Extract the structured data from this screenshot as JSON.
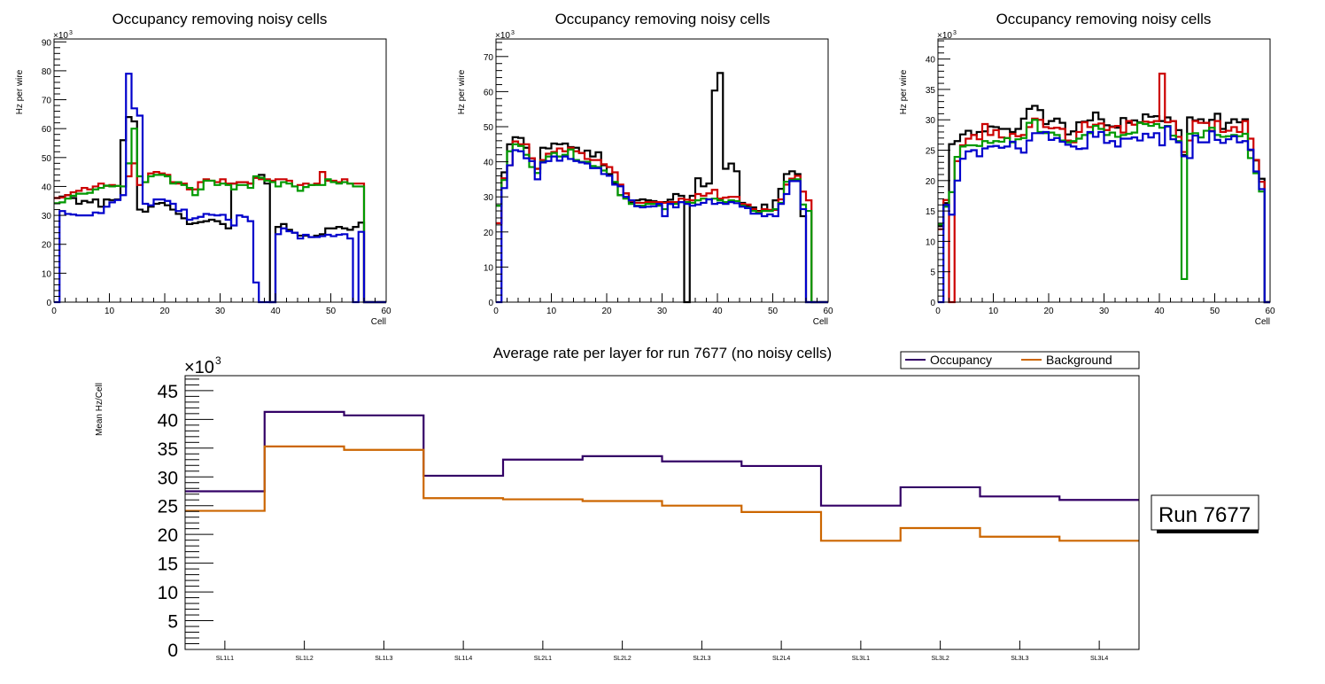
{
  "chart_data": [
    {
      "id": "occ1",
      "type": "histogram-step",
      "title": "Occupancy removing noisy cells",
      "xlabel": "Cell",
      "ylabel": "Hz per wire",
      "y_multiplier_label": "×10",
      "y_multiplier_exp": "3",
      "xlim": [
        0,
        60
      ],
      "ylim": [
        0,
        91
      ],
      "xticks": [
        0,
        10,
        20,
        30,
        40,
        50,
        60
      ],
      "yticks": [
        0,
        10,
        20,
        30,
        40,
        50,
        60,
        70,
        80,
        90
      ],
      "bin_width": 1,
      "series": [
        {
          "name": "layer-black",
          "color": "#000000",
          "values": [
            36,
            36.5,
            37,
            36,
            34,
            35,
            34.5,
            35.5,
            33,
            35.5,
            35.3,
            35.5,
            56,
            64,
            62.5,
            32,
            31.3,
            33,
            34,
            34.3,
            33.5,
            32,
            30.5,
            29,
            27,
            27.3,
            27.7,
            28,
            28.5,
            28,
            27,
            25.5,
            41,
            41.5,
            41.5,
            41,
            43,
            44,
            41,
            0,
            26,
            27,
            25,
            24,
            23,
            23,
            22.5,
            23,
            23.5,
            25.5,
            25.5,
            26,
            25.5,
            25,
            26,
            27.5,
            0,
            0,
            0,
            0
          ]
        },
        {
          "name": "layer-red",
          "color": "#cc0000",
          "values": [
            36,
            36.2,
            37,
            38,
            38.5,
            39.5,
            39,
            40,
            41,
            40.2,
            40.5,
            40.2,
            40,
            43.5,
            48,
            40.5,
            41.5,
            44.5,
            45,
            44.5,
            44,
            41.5,
            41,
            41,
            39,
            39,
            41.5,
            42.5,
            42,
            41.5,
            42.5,
            41,
            41,
            41.5,
            41.5,
            41,
            43,
            42.5,
            42.5,
            42,
            42.5,
            42.5,
            42,
            40,
            40.5,
            41,
            40.5,
            41,
            45,
            42,
            42,
            41.5,
            42.5,
            41,
            41,
            41,
            0,
            0,
            0,
            0
          ]
        },
        {
          "name": "layer-green",
          "color": "#009900",
          "values": [
            34.2,
            34.5,
            35.8,
            36.8,
            37.5,
            37.5,
            37.8,
            39,
            39.5,
            40.3,
            40,
            40.2,
            40,
            48,
            60,
            43.5,
            41.5,
            43.5,
            44,
            44,
            43.5,
            41,
            41.5,
            40.5,
            39.5,
            37,
            39,
            42,
            42,
            40.5,
            41,
            40.5,
            39,
            40.5,
            40.5,
            39.5,
            43.5,
            43,
            42,
            41.5,
            40,
            41.5,
            41,
            40,
            38.5,
            39.8,
            40.5,
            40.5,
            40.5,
            42.5,
            41.5,
            41,
            41.5,
            41,
            40,
            40,
            0,
            0,
            0,
            0
          ]
        },
        {
          "name": "layer-blue",
          "color": "#0000cc",
          "values": [
            0,
            31.5,
            30.5,
            30.3,
            30,
            30,
            30,
            31,
            30.8,
            33,
            34.5,
            35.3,
            37,
            79,
            67,
            64.5,
            34,
            33.5,
            35.5,
            35.5,
            35,
            34,
            31.5,
            32,
            28.5,
            29,
            29.5,
            30.5,
            30.2,
            30,
            30.2,
            28.5,
            26.5,
            30,
            29.5,
            28,
            6.8,
            0,
            0,
            0,
            23.5,
            25.5,
            24.5,
            24,
            22,
            23.3,
            22.5,
            22.5,
            22.8,
            23.3,
            22.8,
            23.3,
            23.5,
            22,
            0,
            24.3,
            0,
            0,
            0,
            0
          ]
        }
      ]
    },
    {
      "id": "occ2",
      "type": "histogram-step",
      "title": "Occupancy removing noisy cells",
      "xlabel": "Cell",
      "ylabel": "Hz per wire",
      "y_multiplier_label": "×10",
      "y_multiplier_exp": "3",
      "xlim": [
        0,
        60
      ],
      "ylim": [
        0,
        75
      ],
      "xticks": [
        0,
        10,
        20,
        30,
        40,
        50,
        60
      ],
      "yticks": [
        0,
        10,
        20,
        30,
        40,
        50,
        60,
        70
      ],
      "bin_width": 1,
      "series": [
        {
          "name": "layer-black",
          "color": "#000000",
          "values": [
            27.5,
            37,
            45,
            47,
            46.8,
            44,
            41,
            38,
            44,
            43.8,
            45.2,
            45,
            45.2,
            44.2,
            44,
            42.5,
            43.2,
            41.5,
            42.7,
            39,
            36.5,
            34,
            30.5,
            31,
            28.5,
            29,
            29.3,
            29,
            28.8,
            28.5,
            28.5,
            29.2,
            30.8,
            30.3,
            0,
            30.3,
            35.3,
            33,
            33.8,
            60.3,
            65.3,
            38,
            39.5,
            37.3,
            28.3,
            27.3,
            27,
            26,
            27.8,
            26,
            29,
            32.3,
            36.5,
            37.3,
            36.5,
            24.5,
            0,
            0,
            0,
            0
          ]
        },
        {
          "name": "layer-red",
          "color": "#cc0000",
          "values": [
            22.5,
            35.3,
            39,
            45.8,
            45,
            45,
            41,
            38,
            40.5,
            42.3,
            42.8,
            43.8,
            43,
            44,
            43,
            42.5,
            40.8,
            40.5,
            40.5,
            39.3,
            38.5,
            37,
            33.5,
            31,
            28.8,
            28.3,
            28.3,
            28.5,
            28.5,
            28.5,
            28.3,
            28.5,
            28.5,
            29.5,
            29.2,
            29,
            30.8,
            30.3,
            31,
            32,
            29.5,
            29.8,
            30,
            30,
            28,
            27.8,
            26.5,
            25.8,
            26.5,
            26.3,
            26.3,
            29.3,
            33.5,
            35.2,
            36,
            31.5,
            29,
            0,
            0,
            0
          ]
        },
        {
          "name": "layer-green",
          "color": "#009900",
          "values": [
            27.5,
            34.8,
            43,
            45,
            44.5,
            42,
            38.5,
            36.8,
            40,
            41.5,
            42.5,
            41.5,
            42,
            43.5,
            40.5,
            40,
            40,
            38.8,
            38.5,
            37.5,
            36,
            34.3,
            30.5,
            29.5,
            28,
            27.5,
            27.5,
            28,
            28,
            27.5,
            26.5,
            28,
            28,
            28.5,
            28.5,
            28.3,
            29,
            29.5,
            29.3,
            29.5,
            29,
            28.5,
            29,
            28.8,
            27.5,
            27,
            26,
            25.5,
            26,
            26,
            26.5,
            28.3,
            34.3,
            34.8,
            35,
            27.8,
            26,
            0,
            0,
            0
          ]
        },
        {
          "name": "layer-blue",
          "color": "#0000cc",
          "values": [
            0,
            32.5,
            39,
            43.3,
            43,
            41,
            40.2,
            35,
            39.8,
            40.2,
            41.5,
            40.3,
            41.5,
            40.8,
            40.2,
            39.8,
            39.5,
            38.2,
            38.2,
            36.5,
            36,
            33.5,
            33,
            30,
            29,
            27.3,
            27,
            27.2,
            27.3,
            28,
            24.5,
            28,
            27,
            28.5,
            28,
            27.5,
            27.8,
            28.3,
            29.3,
            28,
            28.3,
            28,
            28.5,
            28.2,
            27.2,
            26.8,
            25.2,
            25.2,
            24.5,
            25,
            24.5,
            28,
            30.8,
            34.5,
            34.5,
            26.5,
            0,
            0,
            0,
            0
          ]
        }
      ]
    },
    {
      "id": "occ3",
      "type": "histogram-step",
      "title": "Occupancy removing noisy cells",
      "xlabel": "Cell",
      "ylabel": "Hz per wire",
      "y_multiplier_label": "×10",
      "y_multiplier_exp": "3",
      "xlim": [
        0,
        60
      ],
      "ylim": [
        0,
        43.3
      ],
      "xticks": [
        0,
        10,
        20,
        30,
        40,
        50,
        60
      ],
      "yticks": [
        0,
        5,
        10,
        15,
        20,
        25,
        30,
        35,
        40
      ],
      "bin_width": 1,
      "series": [
        {
          "name": "layer-black",
          "color": "#000000",
          "values": [
            12.5,
            16.3,
            26,
            26.5,
            27.6,
            28.2,
            27.5,
            28,
            28.1,
            28.9,
            28.8,
            28.5,
            28.5,
            28,
            28.5,
            30.2,
            31.8,
            32.3,
            31.6,
            29.3,
            29.8,
            30.2,
            29.5,
            27.6,
            28.1,
            29.6,
            29.7,
            29.9,
            31.2,
            30.1,
            29.1,
            28.9,
            28.7,
            30.3,
            29.5,
            29.9,
            29.6,
            30.9,
            30.5,
            30.6,
            29.8,
            30.4,
            29.8,
            28.3,
            24.2,
            30.4,
            29.9,
            30.1,
            29.5,
            30,
            31,
            28.5,
            29.5,
            30.1,
            29.6,
            30.1,
            25,
            23.3,
            20.3,
            0
          ]
        },
        {
          "name": "layer-red",
          "color": "#cc0000",
          "values": [
            12,
            16.8,
            0,
            23.2,
            25.8,
            26.9,
            27.5,
            26.8,
            29.3,
            27.5,
            28.3,
            27.1,
            27,
            27.7,
            27.3,
            27.5,
            28.8,
            30.2,
            30,
            28.8,
            28.6,
            28.7,
            28.5,
            26.6,
            26.3,
            28,
            29.6,
            28.8,
            29.2,
            29.4,
            28.3,
            28.8,
            29,
            27.9,
            29.8,
            29.2,
            29.5,
            29.7,
            29.6,
            29.8,
            37.6,
            29.6,
            29.8,
            27.2,
            24.7,
            26.6,
            29.8,
            29.5,
            29.5,
            28.2,
            29.8,
            28,
            28.2,
            28.8,
            28,
            29.8,
            26.9,
            23.4,
            19.8,
            0
          ]
        },
        {
          "name": "layer-green",
          "color": "#009900",
          "values": [
            12.8,
            15.7,
            18.1,
            23.9,
            25.6,
            25.8,
            25.8,
            25.7,
            26.5,
            26.2,
            26.5,
            26.4,
            27,
            26.3,
            26.8,
            27,
            29.5,
            30,
            28,
            27.8,
            27.9,
            27.5,
            26.6,
            26.3,
            26.5,
            26.9,
            27.5,
            27.8,
            29,
            28.5,
            27.5,
            27.9,
            27.2,
            27.5,
            27.7,
            27.9,
            29.5,
            29.3,
            29,
            29.3,
            28.7,
            29,
            27.4,
            26.5,
            3.8,
            27.7,
            27.8,
            27.1,
            28.2,
            28.7,
            27.5,
            27.2,
            27.3,
            27.5,
            27.3,
            27.7,
            23.7,
            21.2,
            18.2,
            0
          ]
        },
        {
          "name": "layer-blue",
          "color": "#0000cc",
          "values": [
            0,
            16,
            14.4,
            20,
            23.6,
            24.8,
            25,
            24,
            25.3,
            25.6,
            25.7,
            25.4,
            25.6,
            26.4,
            25.3,
            24.6,
            26.6,
            27.8,
            27.8,
            28,
            26.7,
            27,
            26.4,
            25.9,
            25.6,
            25.2,
            25.3,
            28,
            27.2,
            28,
            26.2,
            26.5,
            25.6,
            26.9,
            26.9,
            27.1,
            26.6,
            27.7,
            27.1,
            27.8,
            25.8,
            28.9,
            26.8,
            26.3,
            24,
            23.7,
            27.4,
            26.3,
            26.3,
            28.1,
            26.7,
            26.2,
            26.8,
            27.3,
            26.3,
            26.5,
            25.1,
            21.5,
            18.6,
            0
          ]
        }
      ]
    },
    {
      "id": "avg",
      "type": "histogram-step",
      "title": "Average rate per layer for run 7677 (no noisy cells)",
      "xlabel": "",
      "ylabel": "Mean Hz/Cell",
      "y_multiplier_label": "×10",
      "y_multiplier_exp": "3",
      "ylim": [
        0,
        47.6
      ],
      "yticks": [
        0,
        5,
        10,
        15,
        20,
        25,
        30,
        35,
        40,
        45
      ],
      "categories": [
        "SL1L1",
        "SL1L2",
        "SL1L3",
        "SL1L4",
        "SL2L1",
        "SL2L2",
        "SL2L3",
        "SL2L4",
        "SL3L1",
        "SL3L2",
        "SL3L3",
        "SL3L4"
      ],
      "legend": {
        "position": "top-right",
        "entries": [
          "Occupancy",
          "Background"
        ]
      },
      "series": [
        {
          "name": "Occupancy",
          "color": "#330066",
          "values": [
            27.5,
            41.3,
            40.7,
            30.2,
            33,
            33.6,
            32.7,
            31.9,
            25,
            28.2,
            26.6,
            26
          ]
        },
        {
          "name": "Background",
          "color": "#cc6600",
          "values": [
            24.1,
            35.3,
            34.7,
            26.3,
            26.1,
            25.8,
            25,
            23.9,
            18.9,
            21.1,
            19.6,
            18.9
          ]
        }
      ],
      "annotation": "Run 7677"
    }
  ]
}
